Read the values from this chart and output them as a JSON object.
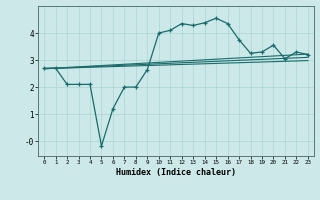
{
  "xlabel": "Humidex (Indice chaleur)",
  "bg_color": "#cce8e8",
  "line_color": "#1a6b6b",
  "grid_color": "#aad4d4",
  "x_ticks": [
    0,
    1,
    2,
    3,
    4,
    5,
    6,
    7,
    8,
    9,
    10,
    11,
    12,
    13,
    14,
    15,
    16,
    17,
    18,
    19,
    20,
    21,
    22,
    23
  ],
  "y_ticks": [
    0,
    1,
    2,
    3,
    4
  ],
  "y_tick_labels": [
    "-0",
    "1",
    "2",
    "3",
    "4"
  ],
  "ylim": [
    -0.55,
    5.0
  ],
  "xlim": [
    -0.5,
    23.5
  ],
  "main_line_x": [
    0,
    1,
    2,
    3,
    4,
    5,
    6,
    7,
    8,
    9,
    10,
    11,
    12,
    13,
    14,
    15,
    16,
    17,
    18,
    19,
    20,
    21,
    22,
    23
  ],
  "main_line_y": [
    2.7,
    2.7,
    2.1,
    2.1,
    2.1,
    -0.18,
    1.2,
    2.0,
    2.0,
    2.65,
    4.0,
    4.1,
    4.35,
    4.28,
    4.38,
    4.55,
    4.35,
    3.75,
    3.25,
    3.3,
    3.55,
    3.05,
    3.3,
    3.2
  ],
  "line2_x": [
    0,
    23
  ],
  "line2_y": [
    2.7,
    3.2
  ],
  "line3_x": [
    0,
    23
  ],
  "line3_y": [
    2.7,
    3.2
  ],
  "line4_x": [
    0,
    23
  ],
  "line4_y": [
    2.7,
    3.2
  ],
  "reg_lines": [
    {
      "x": [
        0,
        23
      ],
      "y": [
        2.68,
        3.22
      ]
    },
    {
      "x": [
        0,
        23
      ],
      "y": [
        2.68,
        3.1
      ]
    },
    {
      "x": [
        0,
        23
      ],
      "y": [
        2.68,
        2.98
      ]
    }
  ]
}
